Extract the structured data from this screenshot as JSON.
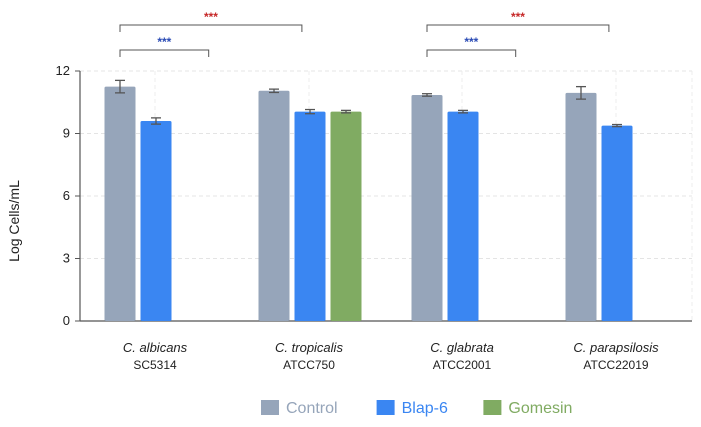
{
  "chart_data": {
    "type": "bar",
    "title": "",
    "xlabel": "",
    "ylabel": "Log Cells/mL",
    "ylim": [
      0,
      12
    ],
    "yticks": [
      0,
      3,
      6,
      9,
      12
    ],
    "grid": true,
    "legend_position": "bottom-center",
    "categories": [
      {
        "species": "C. albicans",
        "strain": "SC5314"
      },
      {
        "species": "C. tropicalis",
        "strain": "ATCC750"
      },
      {
        "species": "C. glabrata",
        "strain": "ATCC2001"
      },
      {
        "species": "C. parapsilosis",
        "strain": "ATCC22019"
      }
    ],
    "series": [
      {
        "name": "Control",
        "color": "#96a5ba",
        "values": [
          11.25,
          11.05,
          10.85,
          10.95
        ],
        "errors": [
          0.3,
          0.08,
          0.06,
          0.3
        ]
      },
      {
        "name": "Blap-6",
        "color": "#3a86f2",
        "values": [
          9.6,
          10.05,
          10.05,
          9.38
        ],
        "errors": [
          0.15,
          0.1,
          0.06,
          0.05
        ]
      },
      {
        "name": "Gomesin",
        "color": "#80ab62",
        "values": [
          null,
          10.05,
          null,
          null
        ],
        "errors": [
          null,
          0.06,
          null,
          null
        ]
      }
    ],
    "annotations": [
      {
        "category": 0,
        "from_series": "Control",
        "to_series": "Blap-6",
        "label": "***",
        "color": "#2a4bb5",
        "level": 1
      },
      {
        "category": 0,
        "from_series": "Control",
        "to_category": 1,
        "label": "***",
        "color": "#c62828",
        "level": 2
      },
      {
        "category": 2,
        "from_series": "Control",
        "to_series": "Blap-6",
        "label": "***",
        "color": "#2a4bb5",
        "level": 1
      },
      {
        "category": 2,
        "from_series": "Control",
        "to_category": 3,
        "label": "***",
        "color": "#c62828",
        "level": 2
      }
    ]
  }
}
